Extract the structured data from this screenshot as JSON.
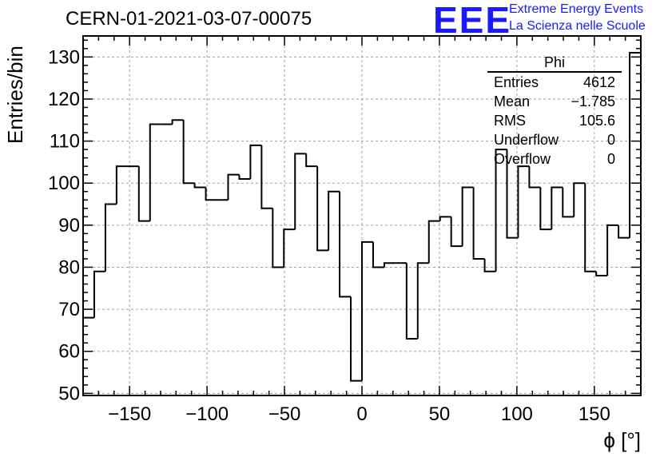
{
  "header": {
    "title": "CERN-01-2021-03-07-00075",
    "logo_text": "EEE",
    "logo_line1": "Extreme Energy Events",
    "logo_line2": "La Scienza nelle Scuole"
  },
  "stats_box": {
    "name": "Phi",
    "rows": [
      {
        "label": "Entries",
        "value": "4612"
      },
      {
        "label": "Mean",
        "value": "−1.785"
      },
      {
        "label": "RMS",
        "value": "105.6"
      },
      {
        "label": "Underflow",
        "value": "0"
      },
      {
        "label": "Overflow",
        "value": "0"
      }
    ]
  },
  "colors": {
    "line": "#000000",
    "grid": "#a0a0a0",
    "logo": "#1a1aff"
  },
  "chart_data": {
    "type": "histogram",
    "title": "CERN-01-2021-03-07-00075",
    "xlabel": "ϕ [°]",
    "ylabel": "Entries/bin",
    "xlim": [
      -180,
      180
    ],
    "ylim": [
      49.5,
      135
    ],
    "bin_width": 7.2,
    "grid": true,
    "xticks": [
      -150,
      -100,
      -50,
      0,
      50,
      100,
      150
    ],
    "xtick_labels": [
      "−150",
      "−100",
      "−50",
      "0",
      "50",
      "100",
      "150"
    ],
    "yticks": [
      50,
      60,
      70,
      80,
      90,
      100,
      110,
      120,
      130
    ],
    "values": [
      68,
      79,
      95,
      104,
      104,
      91,
      114,
      114,
      115,
      100,
      99,
      96,
      96,
      102,
      101,
      109,
      94,
      80,
      89,
      107,
      104,
      84,
      98,
      73,
      53,
      86,
      80,
      81,
      81,
      63,
      81,
      91,
      92,
      85,
      99,
      82,
      79,
      108,
      87,
      104,
      99,
      89,
      99,
      92,
      100,
      79,
      78,
      90,
      87,
      131
    ]
  }
}
